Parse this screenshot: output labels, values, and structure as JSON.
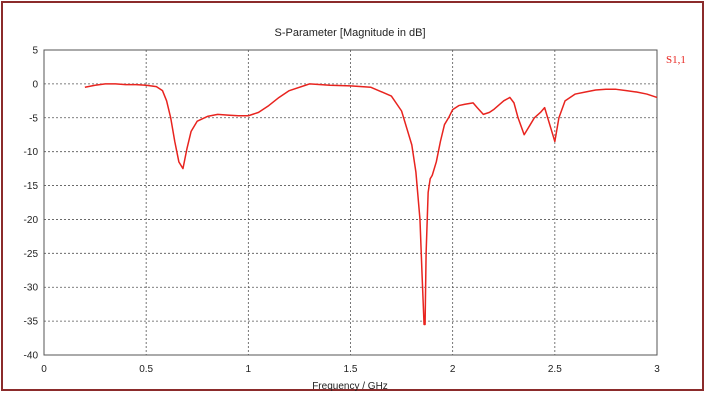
{
  "chart_data": {
    "type": "line",
    "title": "S-Parameter [Magnitude in dB]",
    "xlabel": "Frequency / GHz",
    "ylabel": "",
    "xlim": [
      0,
      3
    ],
    "ylim": [
      -40,
      5
    ],
    "grid": true,
    "legend": "top-right",
    "x_ticks": [
      "0",
      "0.5",
      "1",
      "1.5",
      "2",
      "2.5",
      "3"
    ],
    "y_ticks": [
      "5",
      "0",
      "-5",
      "-10",
      "-15",
      "-20",
      "-25",
      "-30",
      "-35",
      "-40"
    ],
    "series": [
      {
        "name": "S1,1",
        "color": "#e8241f",
        "x": [
          0.2,
          0.25,
          0.3,
          0.35,
          0.4,
          0.45,
          0.5,
          0.55,
          0.58,
          0.6,
          0.62,
          0.64,
          0.66,
          0.68,
          0.7,
          0.72,
          0.75,
          0.8,
          0.85,
          0.9,
          0.95,
          1.0,
          1.05,
          1.1,
          1.15,
          1.2,
          1.3,
          1.4,
          1.5,
          1.6,
          1.7,
          1.75,
          1.8,
          1.82,
          1.84,
          1.85,
          1.86,
          1.865,
          1.87,
          1.88,
          1.89,
          1.9,
          1.92,
          1.94,
          1.96,
          1.98,
          2.0,
          2.03,
          2.06,
          2.1,
          2.12,
          2.15,
          2.18,
          2.2,
          2.25,
          2.28,
          2.3,
          2.32,
          2.35,
          2.38,
          2.4,
          2.43,
          2.45,
          2.48,
          2.5,
          2.52,
          2.55,
          2.6,
          2.65,
          2.7,
          2.75,
          2.8,
          2.85,
          2.9,
          2.95,
          3.0
        ],
        "y": [
          -0.5,
          -0.2,
          0.0,
          0.0,
          -0.1,
          -0.1,
          -0.2,
          -0.4,
          -1.0,
          -2.5,
          -5.0,
          -8.5,
          -11.5,
          -12.5,
          -9.5,
          -7.0,
          -5.5,
          -4.8,
          -4.5,
          -4.6,
          -4.7,
          -4.7,
          -4.2,
          -3.2,
          -2.0,
          -1.0,
          0.0,
          -0.2,
          -0.3,
          -0.5,
          -1.8,
          -4.0,
          -9.0,
          -13.0,
          -20.0,
          -28.0,
          -35.5,
          -35.5,
          -25.0,
          -16.0,
          -14.0,
          -13.5,
          -11.5,
          -8.5,
          -6.0,
          -5.0,
          -3.8,
          -3.2,
          -3.0,
          -2.8,
          -3.5,
          -4.5,
          -4.2,
          -3.8,
          -2.5,
          -2.0,
          -2.8,
          -5.0,
          -7.5,
          -6.0,
          -5.0,
          -4.2,
          -3.5,
          -6.5,
          -8.5,
          -5.0,
          -2.5,
          -1.5,
          -1.2,
          -0.9,
          -0.8,
          -0.8,
          -1.0,
          -1.2,
          -1.5,
          -2.0
        ]
      }
    ]
  }
}
